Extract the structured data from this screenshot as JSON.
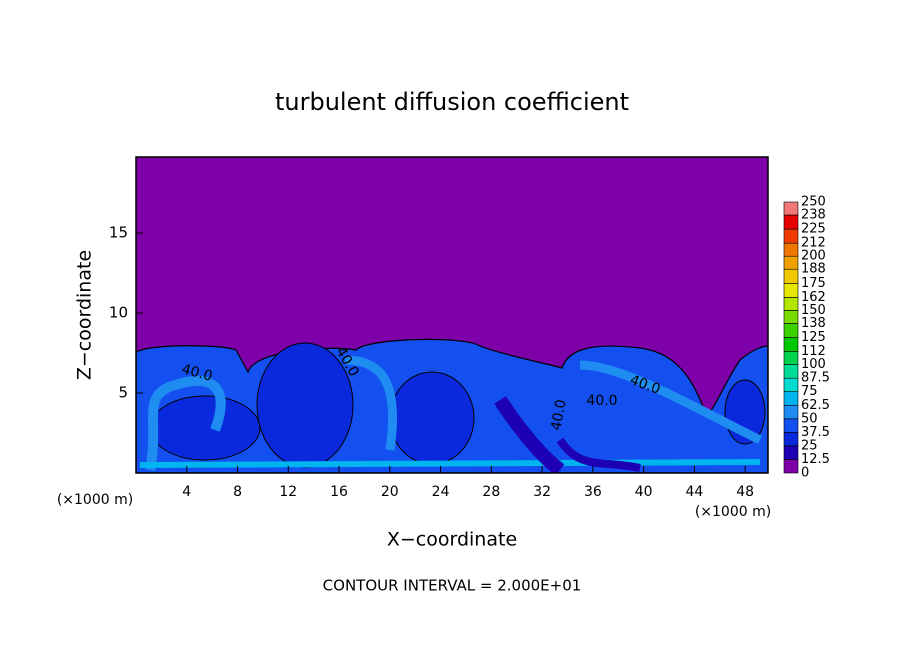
{
  "chart_data": {
    "type": "contour",
    "title": "turbulent diffusion coefficient",
    "x_label": "X−coordinate",
    "y_label": "Z−coordinate",
    "x_unit_left": "(×1000 m)",
    "x_unit_right": "(×1000 m)",
    "footer": "CONTOUR INTERVAL = 2.000E+01",
    "xlim": [
      0,
      49.8
    ],
    "ylim": [
      0,
      19.75
    ],
    "xticks": [
      4,
      8,
      12,
      16,
      20,
      24,
      28,
      32,
      36,
      40,
      44,
      48
    ],
    "yticks": [
      5,
      10,
      15
    ],
    "colorbar": {
      "levels": [
        0,
        12.5,
        25,
        37.5,
        50,
        62.5,
        75,
        87.5,
        100,
        112,
        125,
        138,
        150,
        162,
        175,
        188,
        200,
        212,
        225,
        238,
        250
      ],
      "colors": [
        "#7d00a8",
        "#1e00b4",
        "#0a28dc",
        "#1450f0",
        "#1e8cf0",
        "#00b4f0",
        "#00dcd2",
        "#00dc96",
        "#00d250",
        "#00c800",
        "#3cd200",
        "#78dc00",
        "#b4e600",
        "#e6e600",
        "#f0c800",
        "#f0a000",
        "#f07800",
        "#f03c00",
        "#e60000",
        "#f07878"
      ]
    },
    "contour_labels": [
      {
        "value": 40,
        "label": "40.0"
      },
      {
        "value": 40,
        "label": "40.0"
      },
      {
        "value": 40,
        "label": "40.0"
      },
      {
        "value": 40,
        "label": "40.0"
      },
      {
        "value": 40,
        "label": "40.0"
      }
    ]
  }
}
